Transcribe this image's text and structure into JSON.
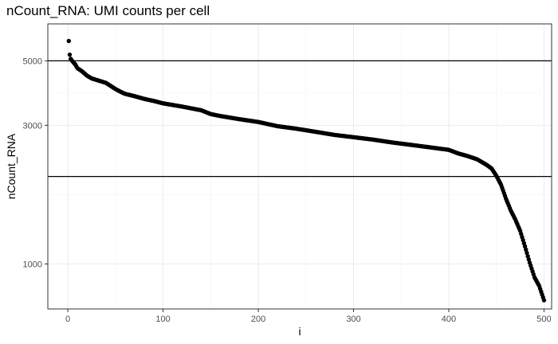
{
  "chart_data": {
    "type": "scatter",
    "title": "nCount_RNA: UMI counts per cell",
    "xlabel": "i",
    "ylabel": "nCount_RNA",
    "xlim": [
      -21,
      508
    ],
    "ylim": [
      700,
      6700
    ],
    "y_scale": "log",
    "grid": true,
    "x_ticks": [
      0,
      100,
      200,
      300,
      400,
      500
    ],
    "x_tick_labels": [
      "0",
      "100",
      "200",
      "300",
      "400",
      "500"
    ],
    "y_ticks": [
      1000,
      3000,
      5000
    ],
    "y_tick_labels": [
      "1000",
      "3000",
      "5000"
    ],
    "hlines": [
      5000,
      2000
    ],
    "point_color": "#000000",
    "x_range": [
      1,
      500
    ],
    "profile": {
      "x": [
        1,
        2,
        3,
        5,
        8,
        10,
        15,
        20,
        25,
        30,
        40,
        50,
        55,
        60,
        70,
        80,
        90,
        100,
        120,
        140,
        150,
        160,
        180,
        200,
        220,
        240,
        260,
        280,
        300,
        320,
        340,
        360,
        380,
        400,
        410,
        420,
        430,
        440,
        445,
        450,
        455,
        460,
        465,
        470,
        475,
        480,
        485,
        490,
        495,
        500
      ],
      "y": [
        5850,
        5250,
        5080,
        4980,
        4850,
        4720,
        4600,
        4450,
        4350,
        4300,
        4200,
        4000,
        3920,
        3850,
        3780,
        3700,
        3640,
        3570,
        3480,
        3380,
        3280,
        3230,
        3150,
        3080,
        2980,
        2920,
        2850,
        2780,
        2730,
        2680,
        2620,
        2570,
        2520,
        2470,
        2400,
        2350,
        2290,
        2190,
        2130,
        2010,
        1870,
        1680,
        1530,
        1420,
        1300,
        1150,
        1010,
        900,
        840,
        750
      ]
    }
  }
}
